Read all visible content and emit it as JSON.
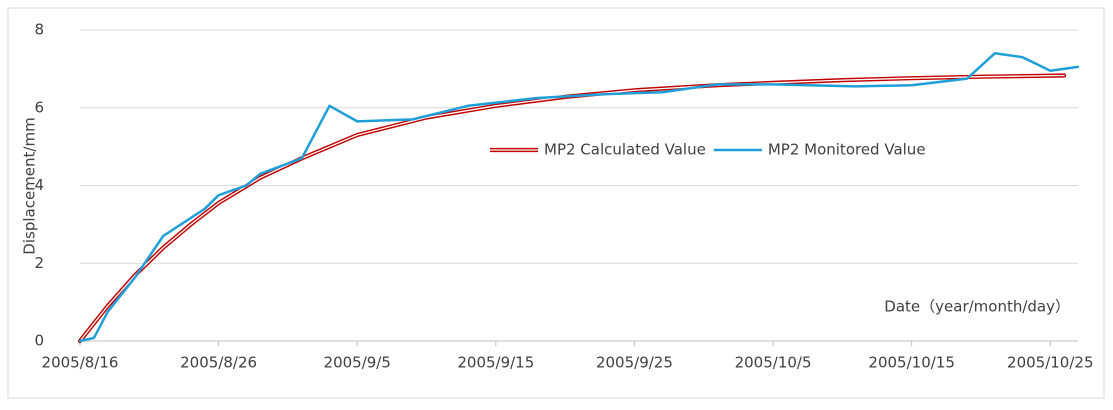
{
  "chart_data": {
    "type": "line",
    "y_label": "Displacement/mm",
    "x_label": "Date（year/month/day）",
    "xlim": [
      "2005/8/16",
      "2005/10/27"
    ],
    "xticks": [
      "2005/8/16",
      "2005/8/26",
      "2005/9/5",
      "2005/9/15",
      "2005/9/25",
      "2005/10/5",
      "2005/10/15",
      "2005/10/25"
    ],
    "ylim": [
      0,
      8
    ],
    "yticks": [
      0,
      2,
      4,
      6,
      8
    ],
    "grid": true,
    "legend": "center",
    "series": [
      {
        "name": "MP2 Calculated Value",
        "color": "#c00000",
        "style": "double",
        "x": [
          "2005/8/16",
          "2005/8/18",
          "2005/8/20",
          "2005/8/22",
          "2005/8/24",
          "2005/8/26",
          "2005/8/29",
          "2005/9/1",
          "2005/9/5",
          "2005/9/10",
          "2005/9/15",
          "2005/9/20",
          "2005/9/25",
          "2005/10/1",
          "2005/10/5",
          "2005/10/10",
          "2005/10/15",
          "2005/10/20",
          "2005/10/26"
        ],
        "values": [
          0,
          0.9,
          1.7,
          2.4,
          3.0,
          3.55,
          4.2,
          4.7,
          5.3,
          5.75,
          6.05,
          6.28,
          6.45,
          6.58,
          6.64,
          6.71,
          6.76,
          6.8,
          6.83
        ]
      },
      {
        "name": "MP2 Monitored Value",
        "color": "#1f9fd8",
        "style": "solid",
        "x": [
          "2005/8/16",
          "2005/8/17",
          "2005/8/18",
          "2005/8/20",
          "2005/8/22",
          "2005/8/25",
          "2005/8/26",
          "2005/8/28",
          "2005/8/29",
          "2005/9/1",
          "2005/9/3",
          "2005/9/5",
          "2005/9/9",
          "2005/9/13",
          "2005/9/18",
          "2005/9/23",
          "2005/9/27",
          "2005/10/1",
          "2005/10/5",
          "2005/10/11",
          "2005/10/15",
          "2005/10/19",
          "2005/10/21",
          "2005/10/23",
          "2005/10/25",
          "2005/10/27"
        ],
        "values": [
          0,
          0.08,
          0.75,
          1.65,
          2.7,
          3.4,
          3.75,
          4.0,
          4.3,
          4.7,
          6.05,
          5.65,
          5.7,
          6.05,
          6.25,
          6.35,
          6.4,
          6.6,
          6.6,
          6.55,
          6.58,
          6.75,
          7.4,
          7.3,
          6.95,
          7.05
        ]
      }
    ]
  }
}
